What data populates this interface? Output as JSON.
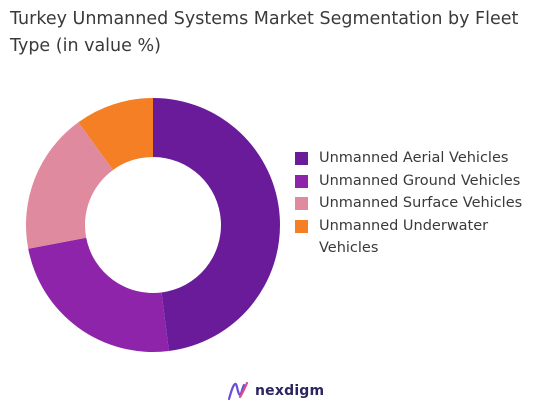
{
  "chart_data": {
    "type": "pie",
    "title": "Turkey Unmanned Systems Market Segmentation by Fleet Type (in value %)",
    "donut": true,
    "categories": [
      "Unmanned Aerial Vehicles",
      "Unmanned Ground Vehicles",
      "Unmanned Surface Vehicles",
      "Unmanned Underwater Vehicles"
    ],
    "values": [
      48,
      24,
      18,
      10
    ],
    "colors": [
      "#6a1b9a",
      "#8e24aa",
      "#e08aa0",
      "#f57f24"
    ],
    "legend_position": "right"
  },
  "logo": {
    "text": "nexdigm"
  }
}
